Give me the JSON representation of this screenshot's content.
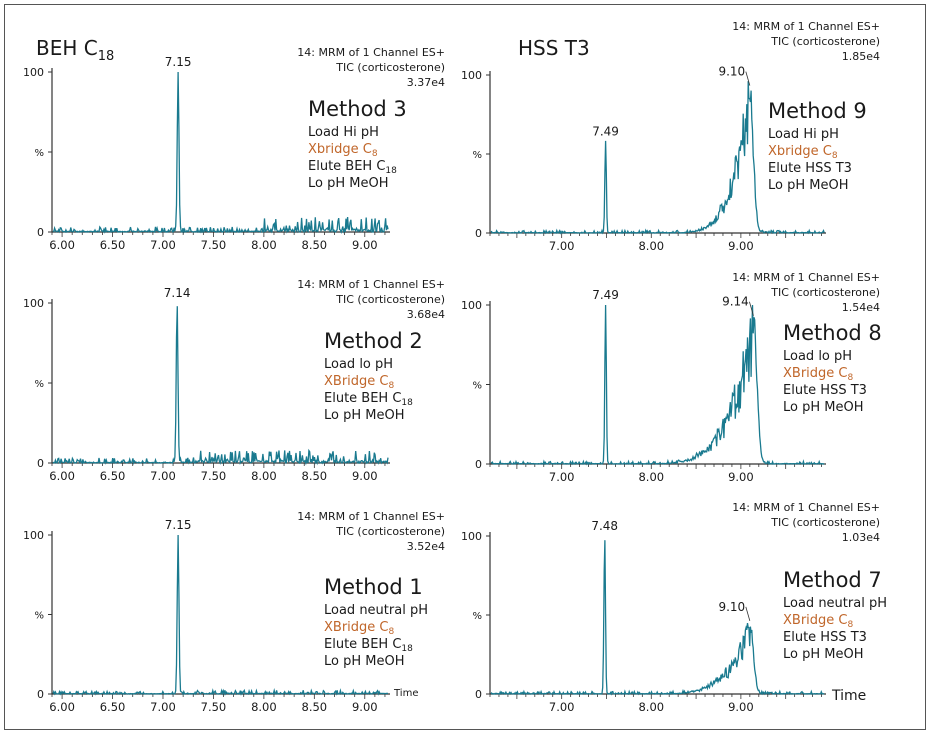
{
  "column_titles": {
    "left": {
      "base": "BEH C",
      "sub": "18"
    },
    "right": {
      "base": "HSS T3",
      "sub": ""
    }
  },
  "colors": {
    "trace": "#1a7a8f",
    "axis": "#333333",
    "accent": "#c0662a",
    "text": "#1a1a1a"
  },
  "chart_data": [
    {
      "type": "line",
      "panel": "left-top",
      "header": [
        "14: MRM of 1 Channel ES+",
        "TIC (corticosterone)",
        "3.37e4"
      ],
      "method": {
        "title": "Method 3",
        "lines": [
          {
            "text": "Load Hi pH",
            "sub": "",
            "accent": false
          },
          {
            "text": "Xbridge C",
            "sub": "8",
            "accent": true
          },
          {
            "text": "Elute BEH C",
            "sub": "18",
            "accent": false
          },
          {
            "text": "Lo pH MeOH",
            "sub": "",
            "accent": false
          }
        ]
      },
      "xlim": [
        5.9,
        9.25
      ],
      "ylim": [
        0,
        100
      ],
      "xticks": [
        "6.00",
        "6.50",
        "7.00",
        "7.50",
        "8.00",
        "8.50",
        "9.00"
      ],
      "yticks": [
        "0",
        "%",
        "100"
      ],
      "xlabel": "",
      "peaks": [
        {
          "x": 7.15,
          "y": 100,
          "label": "7.15"
        }
      ],
      "noise_level": 2,
      "noise_ramp": 4,
      "ramp_start": 8.0,
      "hump": null
    },
    {
      "type": "line",
      "panel": "right-top",
      "header": [
        "14: MRM of 1 Channel ES+",
        "TIC (corticosterone)",
        "1.85e4"
      ],
      "method": {
        "title": "Method 9",
        "lines": [
          {
            "text": "Load Hi pH",
            "sub": "",
            "accent": false
          },
          {
            "text": "Xbridge C",
            "sub": "8",
            "accent": true
          },
          {
            "text": "Elute HSS T3",
            "sub": "",
            "accent": false
          },
          {
            "text": "Lo pH MeOH",
            "sub": "",
            "accent": false
          }
        ]
      },
      "xlim": [
        6.2,
        9.95
      ],
      "ylim": [
        0,
        100
      ],
      "xticks": [
        "7.00",
        "8.00",
        "9.00"
      ],
      "yticks": [
        "0",
        "%",
        "100"
      ],
      "xlabel": "",
      "peaks": [
        {
          "x": 7.49,
          "y": 58,
          "label": "7.49"
        }
      ],
      "noise_level": 1,
      "noise_ramp": 0,
      "ramp_start": 9.0,
      "hump": {
        "x": 9.1,
        "y": 92,
        "label": "9.10",
        "tail_start": 8.2
      }
    },
    {
      "type": "line",
      "panel": "left-middle",
      "header": [
        "14: MRM of 1 Channel ES+",
        "TIC (corticosterone)",
        "3.68e4"
      ],
      "method": {
        "title": "Method 2",
        "lines": [
          {
            "text": "Load lo pH",
            "sub": "",
            "accent": false
          },
          {
            "text": "XBridge C",
            "sub": "8",
            "accent": true
          },
          {
            "text": "Elute BEH C",
            "sub": "18",
            "accent": false
          },
          {
            "text": "Lo pH MeOH",
            "sub": "",
            "accent": false
          }
        ]
      },
      "xlim": [
        5.9,
        9.25
      ],
      "ylim": [
        0,
        100
      ],
      "xticks": [
        "6.00",
        "6.50",
        "7.00",
        "7.50",
        "8.00",
        "8.50",
        "9.00"
      ],
      "yticks": [
        "0",
        "%",
        "100"
      ],
      "xlabel": "",
      "peaks": [
        {
          "x": 7.14,
          "y": 100,
          "label": "7.14"
        }
      ],
      "noise_level": 2,
      "noise_ramp": 3,
      "ramp_start": 7.3,
      "hump": null
    },
    {
      "type": "line",
      "panel": "right-middle",
      "header": [
        "14: MRM of 1 Channel ES+",
        "TIC (corticosterone)",
        "1.54e4"
      ],
      "method": {
        "title": "Method 8",
        "lines": [
          {
            "text": "Load lo pH",
            "sub": "",
            "accent": false
          },
          {
            "text": "XBridge C",
            "sub": "8",
            "accent": true
          },
          {
            "text": "Elute HSS T3",
            "sub": "",
            "accent": false
          },
          {
            "text": "Lo pH MeOH",
            "sub": "",
            "accent": false
          }
        ]
      },
      "xlim": [
        6.2,
        9.95
      ],
      "ylim": [
        0,
        100
      ],
      "xticks": [
        "7.00",
        "8.00",
        "9.00"
      ],
      "yticks": [
        "0",
        "%",
        "100"
      ],
      "xlabel": "",
      "peaks": [
        {
          "x": 7.49,
          "y": 100,
          "label": "7.49"
        }
      ],
      "noise_level": 1,
      "noise_ramp": 0,
      "ramp_start": 9.0,
      "hump": {
        "x": 9.14,
        "y": 92,
        "label": "9.14",
        "tail_start": 7.9
      }
    },
    {
      "type": "line",
      "panel": "left-bottom",
      "header": [
        "14: MRM of 1 Channel ES+",
        "TIC (corticosterone)",
        "3.52e4"
      ],
      "method": {
        "title": "Method 1",
        "lines": [
          {
            "text": "Load neutral pH",
            "sub": "",
            "accent": false
          },
          {
            "text": "XBridge C",
            "sub": "8",
            "accent": true
          },
          {
            "text": "Elute BEH C",
            "sub": "18",
            "accent": false
          },
          {
            "text": "Lo pH MeOH",
            "sub": "",
            "accent": false
          }
        ]
      },
      "xlim": [
        5.9,
        9.25
      ],
      "ylim": [
        0,
        100
      ],
      "xticks": [
        "6.00",
        "6.50",
        "7.00",
        "7.50",
        "8.00",
        "8.50",
        "9.00"
      ],
      "yticks": [
        "0",
        "%",
        "100"
      ],
      "xlabel": "Time",
      "peaks": [
        {
          "x": 7.15,
          "y": 100,
          "label": "7.15"
        }
      ],
      "noise_level": 1,
      "noise_ramp": 0.5,
      "ramp_start": 7.3,
      "hump": null
    },
    {
      "type": "line",
      "panel": "right-bottom",
      "header": [
        "14: MRM of 1 Channel ES+",
        "TIC (corticosterone)",
        "1.03e4"
      ],
      "method": {
        "title": "Method 7",
        "lines": [
          {
            "text": "Load neutral pH",
            "sub": "",
            "accent": false
          },
          {
            "text": "XBridge C",
            "sub": "8",
            "accent": true
          },
          {
            "text": "Elute HSS T3",
            "sub": "",
            "accent": false
          },
          {
            "text": "Lo pH MeOH",
            "sub": "",
            "accent": false
          }
        ]
      },
      "xlim": [
        6.2,
        9.95
      ],
      "ylim": [
        0,
        100
      ],
      "xticks": [
        "7.00",
        "8.00",
        "9.00"
      ],
      "yticks": [
        "0",
        "%",
        "100"
      ],
      "xlabel": "Time",
      "peaks": [
        {
          "x": 7.48,
          "y": 100,
          "label": "7.48"
        }
      ],
      "noise_level": 1,
      "noise_ramp": 0,
      "ramp_start": 9.0,
      "hump": {
        "x": 9.1,
        "y": 45,
        "label": "9.10",
        "tail_start": 8.0
      }
    }
  ]
}
